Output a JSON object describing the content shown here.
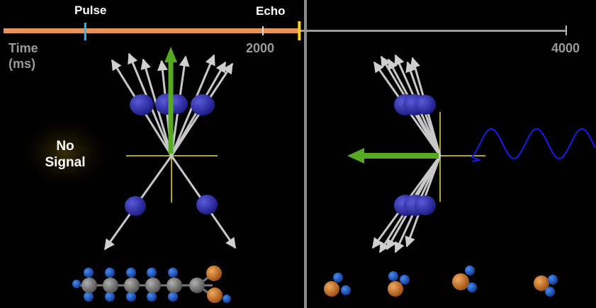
{
  "timeline": {
    "pulse_label": "Pulse",
    "echo_label": "Echo",
    "axis_label_line1": "Time",
    "axis_label_line2": "(ms)",
    "tick_2000": "2000",
    "tick_4000": "4000",
    "pulse_time_ms": 580,
    "echo_time_ms": 2100,
    "current_time_ms": 2100,
    "range_ms": [
      0,
      4000
    ],
    "colors": {
      "elapsed": "#e6955a",
      "remaining": "#9a9a9a",
      "pulse": "#37b7ea",
      "echo": "#ffd21a"
    }
  },
  "left_panel": {
    "status_text_line1": "No",
    "status_text_line2": "Signal",
    "colors": {
      "net_magnetization": "#55aa22",
      "spins": "#2d2da8",
      "axes": "#b3a51a"
    }
  },
  "right_panel": {
    "signal_wave_color": "#1a1aee"
  },
  "molecules": {
    "left": "fatty-acid-chain",
    "right": "water-molecules",
    "colors": {
      "carbon": "#808080",
      "hydrogen": "#1f5ec9",
      "oxygen": "#d67d2e"
    }
  }
}
